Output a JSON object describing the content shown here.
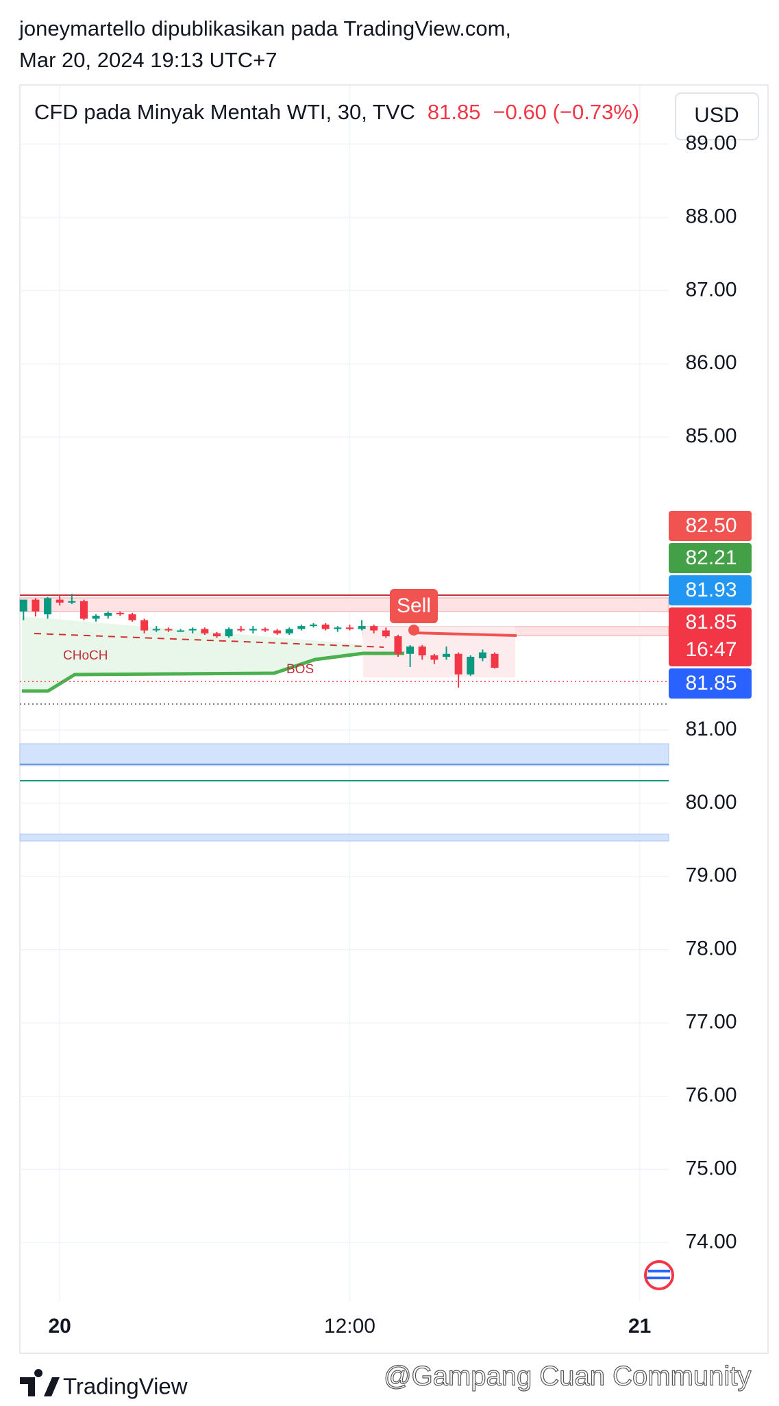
{
  "header": {
    "author": "joneymartello dipublikasikan pada TradingView.com,",
    "date": "Mar 20, 2024 19:13 UTC+7"
  },
  "chart_data": {
    "type": "candlestick",
    "title": "CFD pada Minyak Mentah WTI, 30, TVC",
    "last_price": "81.85",
    "change": "−0.60 (−0.73%)",
    "currency": "USD",
    "up_color": "#089981",
    "down_color": "#f23645",
    "x": [
      -1.5,
      -1,
      -0.5,
      0,
      0.5,
      1,
      1.5,
      2,
      2.5,
      3,
      3.5,
      4,
      4.5,
      5,
      5.5,
      6,
      6.5,
      7,
      7.5,
      8,
      8.5,
      9,
      9.5,
      10,
      10.5,
      11,
      11.5,
      12,
      12.5,
      13,
      13.5,
      14,
      14.5,
      15,
      15.5,
      16,
      16.5,
      17,
      17.5,
      18
    ],
    "open": [
      82.62,
      82.78,
      82.58,
      82.78,
      82.74,
      82.76,
      82.52,
      82.56,
      82.6,
      82.58,
      82.5,
      82.38,
      82.38,
      82.36,
      82.36,
      82.38,
      82.32,
      82.28,
      82.38,
      82.36,
      82.38,
      82.36,
      82.32,
      82.38,
      82.42,
      82.44,
      82.38,
      82.4,
      82.38,
      82.42,
      82.36,
      82.28,
      82.04,
      82.14,
      82.02,
      82.0,
      82.04,
      81.76,
      81.98,
      82.04
    ],
    "high": [
      82.78,
      82.8,
      82.82,
      82.84,
      82.86,
      82.78,
      82.58,
      82.62,
      82.62,
      82.6,
      82.52,
      82.42,
      82.4,
      82.38,
      82.4,
      82.4,
      82.34,
      82.4,
      82.42,
      82.42,
      82.4,
      82.38,
      82.4,
      82.44,
      82.46,
      82.46,
      82.42,
      82.44,
      82.5,
      82.44,
      82.4,
      82.3,
      82.16,
      82.16,
      82.04,
      82.14,
      82.06,
      82.02,
      82.1,
      82.06
    ],
    "low": [
      82.5,
      82.55,
      82.52,
      82.7,
      82.72,
      82.5,
      82.48,
      82.52,
      82.56,
      82.48,
      82.32,
      82.34,
      82.34,
      82.34,
      82.32,
      82.3,
      82.26,
      82.26,
      82.34,
      82.32,
      82.34,
      82.3,
      82.3,
      82.36,
      82.4,
      82.36,
      82.34,
      82.36,
      82.36,
      82.32,
      82.26,
      82.0,
      81.86,
      81.96,
      81.9,
      81.96,
      81.58,
      81.74,
      81.94,
      81.84
    ],
    "close": [
      82.78,
      82.62,
      82.8,
      82.74,
      82.76,
      82.52,
      82.56,
      82.6,
      82.58,
      82.5,
      82.36,
      82.38,
      82.36,
      82.36,
      82.38,
      82.32,
      82.28,
      82.38,
      82.36,
      82.38,
      82.36,
      82.32,
      82.38,
      82.42,
      82.44,
      82.38,
      82.4,
      82.38,
      82.42,
      82.36,
      82.28,
      82.04,
      82.14,
      82.02,
      81.96,
      82.04,
      81.76,
      82.0,
      82.06,
      81.85
    ],
    "ylim": [
      73.2,
      89.8
    ],
    "yticks": [
      {
        "value": 89,
        "label": "89.00"
      },
      {
        "value": 88,
        "label": "88.00"
      },
      {
        "value": 87,
        "label": "87.00"
      },
      {
        "value": 86,
        "label": "86.00"
      },
      {
        "value": 85,
        "label": "85.00"
      },
      {
        "value": 81,
        "label": "81.00"
      },
      {
        "value": 80,
        "label": "80.00"
      },
      {
        "value": 79,
        "label": "79.00"
      },
      {
        "value": 78,
        "label": "78.00"
      },
      {
        "value": 77,
        "label": "77.00"
      },
      {
        "value": 76,
        "label": "76.00"
      },
      {
        "value": 75,
        "label": "75.00"
      },
      {
        "value": 74,
        "label": "74.00"
      }
    ],
    "xlim": [
      -1.65,
      25.2
    ],
    "xticks": [
      {
        "value": 0,
        "label": "20"
      },
      {
        "value": 12,
        "label": "12:00"
      },
      {
        "value": 24,
        "label": "21"
      }
    ],
    "price_labels": [
      {
        "value": 82.5,
        "label": "82.50",
        "color": "#f05350"
      },
      {
        "value": 82.21,
        "label": "82.21",
        "color": "#43a047"
      },
      {
        "value": 81.93,
        "label": "81.93",
        "color": "#2196f3"
      },
      {
        "value": 81.85,
        "label": "81.85",
        "color": "#f23645"
      },
      {
        "value": 81.85,
        "label": "81.85",
        "color": "#2962ff"
      }
    ],
    "countdown": "16:47",
    "annotations": [
      "CHoCH",
      "BOS",
      "Sell"
    ],
    "grid": true
  },
  "footer": {
    "brand": "TradingView",
    "watermark": "@Gampang Cuan Community"
  }
}
